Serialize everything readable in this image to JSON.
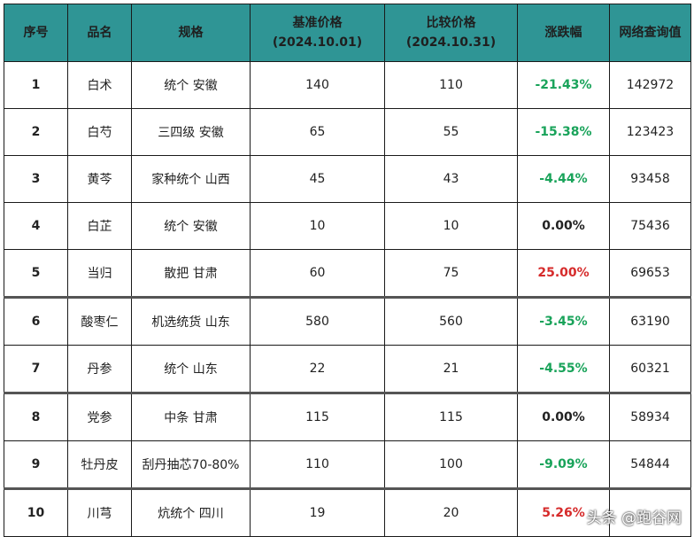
{
  "headers": [
    "序号",
    "品名",
    "规格",
    "基准价格\n(2024.10.01)",
    "比较价格\n(2024.10.31)",
    "涨跌幅",
    "网络查询值"
  ],
  "header_parts": {
    "base_price": "基准价格",
    "base_date": "(2024.10.01)",
    "compare_price": "比较价格",
    "compare_date": "(2024.10.31)"
  },
  "rows": [
    {
      "no": "1",
      "name": "白术",
      "spec": "统个 安徽",
      "base": "140",
      "compare": "110",
      "change": "-21.43%",
      "trend": "neg",
      "query": "142972"
    },
    {
      "no": "2",
      "name": "白芍",
      "spec": "三四级 安徽",
      "base": "65",
      "compare": "55",
      "change": "-15.38%",
      "trend": "neg",
      "query": "123423"
    },
    {
      "no": "3",
      "name": "黄芩",
      "spec": "家种统个 山西",
      "base": "45",
      "compare": "43",
      "change": "-4.44%",
      "trend": "neg",
      "query": "93458"
    },
    {
      "no": "4",
      "name": "白芷",
      "spec": "统个 安徽",
      "base": "10",
      "compare": "10",
      "change": "0.00%",
      "trend": "zero",
      "query": "75436"
    },
    {
      "no": "5",
      "name": "当归",
      "spec": "散把 甘肃",
      "base": "60",
      "compare": "75",
      "change": "25.00%",
      "trend": "pos",
      "query": "69653"
    },
    {
      "no": "6",
      "name": "酸枣仁",
      "spec": "机选统货 山东",
      "base": "580",
      "compare": "560",
      "change": "-3.45%",
      "trend": "neg",
      "query": "63190"
    },
    {
      "no": "7",
      "name": "丹参",
      "spec": "统个 山东",
      "base": "22",
      "compare": "21",
      "change": "-4.55%",
      "trend": "neg",
      "query": "60321"
    },
    {
      "no": "8",
      "name": "党参",
      "spec": "中条 甘肃",
      "base": "115",
      "compare": "115",
      "change": "0.00%",
      "trend": "zero",
      "query": "58934"
    },
    {
      "no": "9",
      "name": "牡丹皮",
      "spec": "刮丹抽芯70-80%",
      "base": "110",
      "compare": "100",
      "change": "-9.09%",
      "trend": "neg",
      "query": "54844"
    },
    {
      "no": "10",
      "name": "川芎",
      "spec": "炕统个 四川",
      "base": "19",
      "compare": "20",
      "change": "5.26%",
      "trend": "pos",
      "query": ""
    }
  ],
  "watermark": "头条 @跑谷网",
  "colors": {
    "header_bg": "#2f9595",
    "negative": "#19a35a",
    "positive": "#d62b2b"
  }
}
